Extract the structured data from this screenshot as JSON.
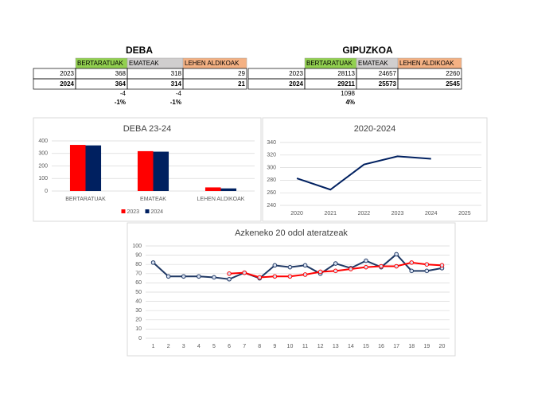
{
  "tables": [
    {
      "title": "DEBA",
      "columns": [
        "BERTARATUAK",
        "EMATEAK",
        "LEHEN ALDIKOAK"
      ],
      "column_colors": [
        "#92d050",
        "#d0cece",
        "#f4b183"
      ],
      "rows": [
        {
          "label": "2023",
          "values": [
            368,
            318,
            29
          ]
        },
        {
          "label": "2024",
          "values": [
            364,
            314,
            21
          ]
        }
      ],
      "change": [
        -4,
        -4
      ],
      "change_pct": [
        "-1%",
        "-1%"
      ],
      "change_pct_color": "#ff0000"
    },
    {
      "title": "GIPUZKOA",
      "columns": [
        "BERTARATUAK",
        "EMATEAK",
        "LEHEN ALDIKOAK"
      ],
      "column_colors": [
        "#92d050",
        "#d0cece",
        "#f4b183"
      ],
      "rows": [
        {
          "label": "2023",
          "values": [
            28113,
            24657,
            2260
          ]
        },
        {
          "label": "2024",
          "values": [
            29211,
            25573,
            2545
          ]
        }
      ],
      "change": [
        1098
      ],
      "change_pct": [
        "4%"
      ],
      "change_pct_color": "#548235"
    }
  ],
  "chart_data": [
    {
      "type": "bar",
      "title": "DEBA 23-24",
      "categories": [
        "BERTARATUAK",
        "EMATEAK",
        "LEHEN ALDIKOAK"
      ],
      "series": [
        {
          "name": "2023",
          "color": "#ff0000",
          "values": [
            368,
            318,
            29
          ]
        },
        {
          "name": "2024",
          "color": "#002060",
          "values": [
            364,
            314,
            21
          ]
        }
      ],
      "ylim": [
        0,
        400
      ],
      "yticks": [
        0,
        100,
        200,
        300,
        400
      ],
      "grid": true,
      "legend": "bottom"
    },
    {
      "type": "line",
      "title": "2020-2024",
      "categories": [
        "2020",
        "2021",
        "2022",
        "2023",
        "2024",
        "2025"
      ],
      "series": [
        {
          "color": "#002060",
          "values": [
            283,
            265,
            305,
            318,
            314,
            null
          ]
        }
      ],
      "ylim": [
        240,
        340
      ],
      "yticks": [
        240,
        260,
        280,
        300,
        320,
        340
      ],
      "grid": true
    },
    {
      "type": "line",
      "title": "Azkeneko 20 odol ateratzeak",
      "categories": [
        "1",
        "2",
        "3",
        "4",
        "5",
        "6",
        "7",
        "8",
        "9",
        "10",
        "11",
        "12",
        "13",
        "14",
        "15",
        "16",
        "17",
        "18",
        "19",
        "20"
      ],
      "series": [
        {
          "color": "#1f3864",
          "markers": true,
          "values": [
            82,
            67,
            67,
            67,
            66,
            64,
            71,
            65,
            79,
            77,
            79,
            70,
            81,
            76,
            84,
            77,
            91,
            73,
            73,
            76
          ]
        },
        {
          "color": "#ff0000",
          "markers": true,
          "values": [
            null,
            null,
            null,
            null,
            null,
            70,
            71,
            66,
            67,
            67,
            69,
            72,
            73,
            75,
            77,
            78,
            78,
            82,
            80,
            79
          ]
        }
      ],
      "ylim": [
        0,
        100
      ],
      "yticks": [
        0,
        10,
        20,
        30,
        40,
        50,
        60,
        70,
        80,
        90,
        100
      ],
      "grid": true
    }
  ]
}
